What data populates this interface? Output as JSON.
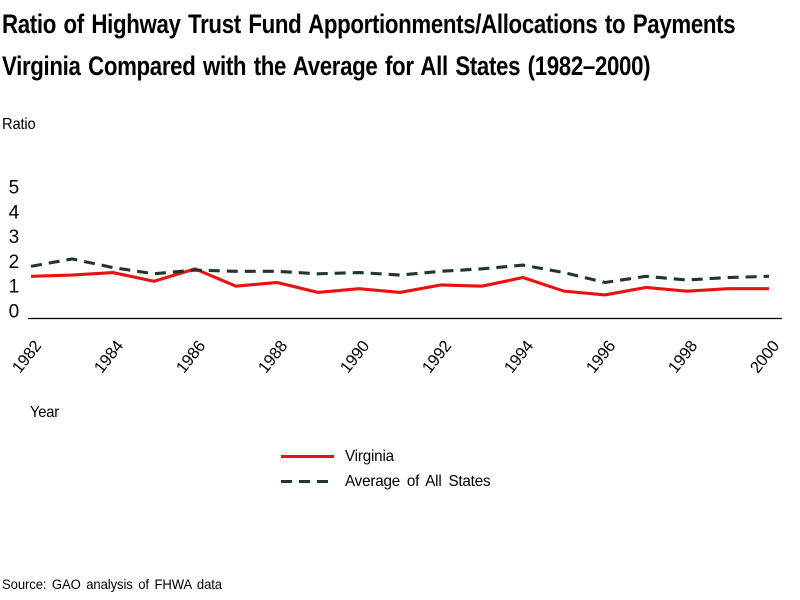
{
  "chart_data": {
    "type": "line",
    "title_lines": [
      "Ratio of Highway Trust Fund Apportionments/Allocations to Payments",
      "Virginia Compared with the Average for All States (1982–2000)"
    ],
    "ylabel": "Ratio",
    "xlabel": "Year",
    "x": [
      1982,
      1983,
      1984,
      1985,
      1986,
      1987,
      1988,
      1989,
      1990,
      1991,
      1992,
      1993,
      1994,
      1995,
      1996,
      1997,
      1998,
      1999,
      2000
    ],
    "series": [
      {
        "name": "Virginia",
        "color": "#ec1111",
        "line_style": "solid",
        "values": [
          1.4,
          1.45,
          1.55,
          1.2,
          1.7,
          1.0,
          1.15,
          0.75,
          0.9,
          0.75,
          1.05,
          1.0,
          1.35,
          0.8,
          0.65,
          0.95,
          0.8,
          0.9,
          0.9
        ]
      },
      {
        "name": "Average of All States",
        "color": "#20382c",
        "line_style": "dashed",
        "values": [
          1.8,
          2.1,
          1.75,
          1.5,
          1.65,
          1.6,
          1.6,
          1.5,
          1.55,
          1.45,
          1.6,
          1.7,
          1.85,
          1.55,
          1.15,
          1.4,
          1.25,
          1.35,
          1.4
        ]
      }
    ],
    "ylim": [
      0,
      5
    ],
    "y_ticks": [
      0,
      1,
      2,
      3,
      4,
      5
    ],
    "x_tick_years": [
      1982,
      1984,
      1986,
      1988,
      1990,
      1992,
      1994,
      1996,
      1998,
      2000
    ],
    "grid": false,
    "legend_position": "below-chart-center",
    "axis_color": "#000000"
  },
  "source_note": "Source: GAO analysis of FHWA data"
}
